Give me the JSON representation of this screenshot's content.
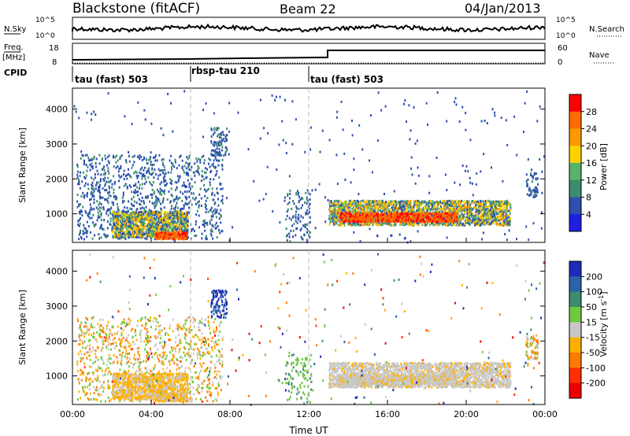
{
  "header": {
    "station": "Blackstone (fitACF)",
    "beam": "Beam 22",
    "date": "04/Jan/2013"
  },
  "top_panels": {
    "nsky_label": "N.Sky",
    "nsearch_label": "N.Search",
    "nsky_ticks": [
      "10^5",
      "10^0"
    ],
    "nsearch_ticks": [
      "10^5",
      "10^0"
    ],
    "freq_label_1": "Freq.",
    "freq_label_2": "[MHz]",
    "freq_ticks": [
      "18",
      "8"
    ],
    "nave_label": "Nave",
    "nave_ticks": [
      "60",
      "0"
    ],
    "cpid_label": "CPID",
    "cpid_segments": [
      {
        "label": "tau (fast) 503",
        "start_hour": 0
      },
      {
        "label": "rbsp-tau 210",
        "start_hour": 6
      },
      {
        "label": "tau (fast) 503",
        "start_hour": 12
      }
    ]
  },
  "power_colorbar": {
    "title": "Power [dB]",
    "ticks": [
      "28",
      "24",
      "20",
      "16",
      "12",
      "8",
      "4"
    ],
    "colors": [
      "#ff0000",
      "#ff6a00",
      "#ff9a00",
      "#ffd200",
      "#59b26a",
      "#3d8c6e",
      "#2c4fb0",
      "#1f1fe0"
    ]
  },
  "velocity_colorbar": {
    "title": "Velocity [m s^-1]",
    "ticks": [
      "200",
      "100",
      "50",
      "15",
      "-15",
      "-50",
      "-100",
      "-200"
    ],
    "colors": [
      "#1f2ab8",
      "#2c62a8",
      "#3d8c6e",
      "#6fc83f",
      "#c8c8c8",
      "#ffb000",
      "#ff7a00",
      "#ff3000",
      "#ee0000"
    ]
  },
  "chart_data": [
    {
      "type": "heatmap",
      "panel": "power",
      "ylabel": "Slant Range [km]",
      "y_ticks": [
        "4000",
        "3000",
        "2000",
        "1000"
      ],
      "ylim": [
        180,
        4600
      ],
      "xlim_hours": [
        0,
        24
      ],
      "description_bands": [
        {
          "x0": 0.2,
          "x1": 7.6,
          "y0": 300,
          "y1": 2700,
          "level": "low"
        },
        {
          "x0": 2.0,
          "x1": 5.8,
          "y0": 350,
          "y1": 1100,
          "level": "mid"
        },
        {
          "x0": 4.2,
          "x1": 5.8,
          "y0": 300,
          "y1": 500,
          "level": "high"
        },
        {
          "x0": 7.0,
          "x1": 7.8,
          "y0": 2700,
          "y1": 3500,
          "level": "low"
        },
        {
          "x0": 10.8,
          "x1": 12.1,
          "y0": 180,
          "y1": 1700,
          "level": "low"
        },
        {
          "x0": 13.0,
          "x1": 22.2,
          "y0": 700,
          "y1": 1400,
          "level": "mid"
        },
        {
          "x0": 13.5,
          "x1": 19.5,
          "y0": 800,
          "y1": 1050,
          "level": "high"
        },
        {
          "x0": 23.0,
          "x1": 23.6,
          "y0": 1500,
          "y1": 2200,
          "level": "low"
        }
      ]
    },
    {
      "type": "heatmap",
      "panel": "velocity",
      "ylabel": "Slant Range [km]",
      "xlabel": "Time UT",
      "x_ticks": [
        "00:00",
        "04:00",
        "08:00",
        "12:00",
        "16:00",
        "20:00",
        "00:00"
      ],
      "y_ticks": [
        "4000",
        "3000",
        "2000",
        "1000"
      ],
      "ylim": [
        180,
        4600
      ],
      "xlim_hours": [
        0,
        24
      ]
    }
  ]
}
